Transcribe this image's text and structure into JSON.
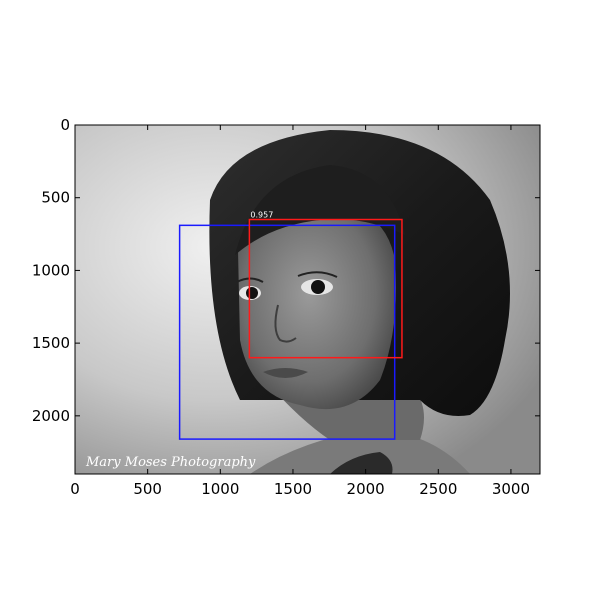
{
  "chart_data": {
    "type": "image-with-boxes",
    "title": "",
    "xlabel": "",
    "ylabel": "",
    "xlim": [
      0,
      3200
    ],
    "ylim": [
      2400,
      0
    ],
    "y_inverted": true,
    "x_ticks": [
      0,
      500,
      1000,
      1500,
      2000,
      2500,
      3000
    ],
    "y_ticks": [
      0,
      500,
      1000,
      1500,
      2000
    ],
    "x_tick_labels": [
      "0",
      "500",
      "1000",
      "1500",
      "2000",
      "2500",
      "3000"
    ],
    "y_tick_labels": [
      "0",
      "500",
      "1000",
      "1500",
      "2000"
    ],
    "grid": false,
    "image": {
      "description_mode": "grayscale",
      "watermark": "Mary Moses Photography"
    },
    "boxes": [
      {
        "name": "blue",
        "color": "#1a1aff",
        "x": [
          720,
          2200
        ],
        "y": [
          690,
          2160
        ],
        "label": ""
      },
      {
        "name": "red",
        "color": "#ff1a1a",
        "x": [
          1200,
          2250
        ],
        "y": [
          650,
          1600
        ],
        "label": "0.957"
      }
    ]
  }
}
